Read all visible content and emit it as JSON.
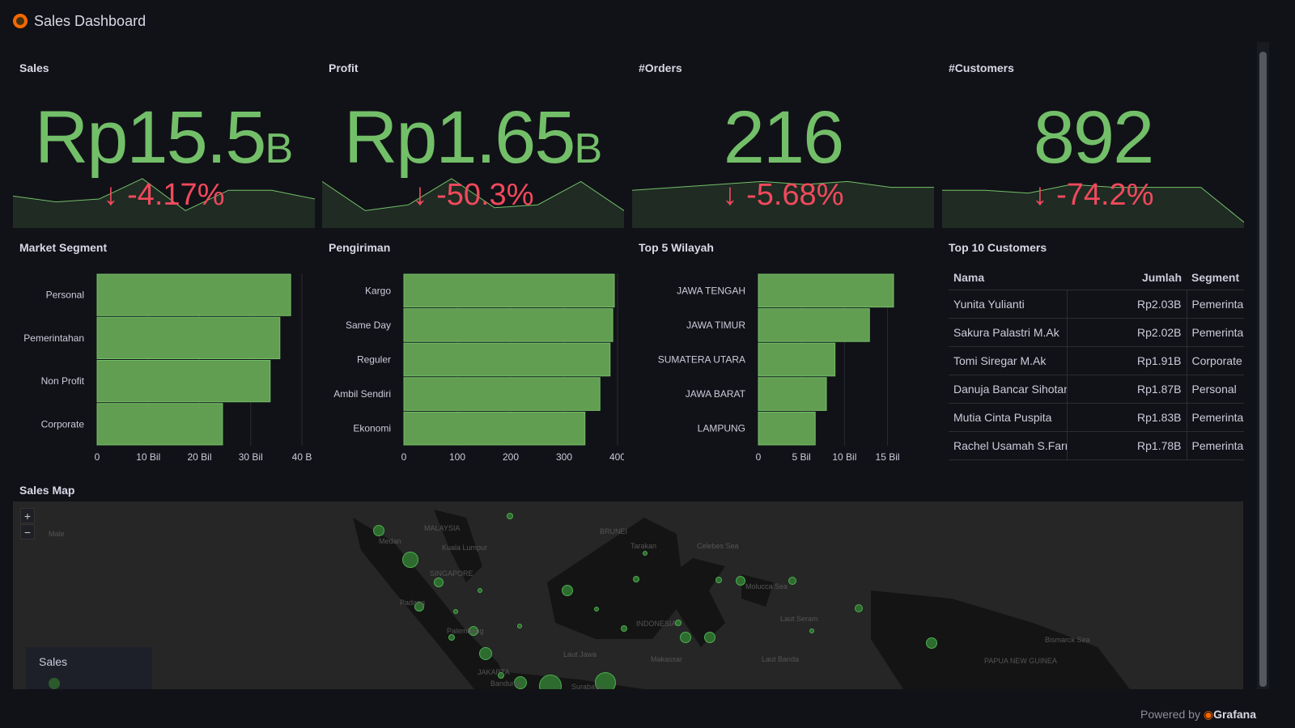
{
  "header": {
    "title": "Sales Dashboard"
  },
  "stats": [
    {
      "title": "Sales",
      "value": "Rp15.5",
      "unit": "B",
      "delta": "-4.17%",
      "spark": [
        0.55,
        0.45,
        0.5,
        0.85,
        0.3,
        0.65,
        0.65,
        0.5
      ]
    },
    {
      "title": "Profit",
      "value": "Rp1.65",
      "unit": "B",
      "delta": "-50.3%",
      "spark": [
        0.8,
        0.3,
        0.4,
        0.85,
        0.35,
        0.4,
        0.8,
        0.3
      ]
    },
    {
      "title": "#Orders",
      "value": "216",
      "unit": "",
      "delta": "-5.68%",
      "spark": [
        0.65,
        0.7,
        0.75,
        0.8,
        0.75,
        0.8,
        0.7,
        0.7
      ]
    },
    {
      "title": "#Customers",
      "value": "892",
      "unit": "",
      "delta": "-74.2%",
      "spark": [
        0.65,
        0.65,
        0.6,
        0.75,
        0.7,
        0.7,
        0.7,
        0.1
      ]
    }
  ],
  "colors": {
    "green": "#73bf69",
    "bar": "#629e51",
    "red": "#f2495c"
  },
  "chart_data": [
    {
      "type": "bar",
      "title": "Market Segment",
      "categories": [
        "Personal",
        "Pemerintahan",
        "Non Profit",
        "Corporate"
      ],
      "values": [
        37.8,
        35.7,
        33.8,
        24.5
      ],
      "xticks": [
        "0",
        "10 Bil",
        "20 Bil",
        "30 Bil",
        "40 B"
      ],
      "xlim": [
        0,
        40
      ]
    },
    {
      "type": "bar",
      "title": "Pengiriman",
      "categories": [
        "Kargo",
        "Same Day",
        "Reguler",
        "Ambil Sendiri",
        "Ekonomi"
      ],
      "values": [
        394,
        391,
        386,
        367,
        339
      ],
      "xticks": [
        "0",
        "100",
        "200",
        "300",
        "400"
      ],
      "xlim": [
        0,
        400
      ]
    },
    {
      "type": "bar",
      "title": "Top 5 Wilayah",
      "categories": [
        "JAWA TENGAH",
        "JAWA TIMUR",
        "SUMATERA UTARA",
        "JAWA BARAT",
        "LAMPUNG"
      ],
      "values": [
        15.7,
        12.9,
        8.9,
        7.9,
        6.6
      ],
      "xticks": [
        "0",
        "5 Bil",
        "10 Bil",
        "15 Bil"
      ],
      "xlim": [
        0,
        15.7
      ]
    }
  ],
  "table": {
    "title": "Top 10 Customers",
    "columns": [
      "Nama",
      "Jumlah",
      "Segment"
    ],
    "rows": [
      [
        "Yunita Yulianti",
        "Rp2.03B",
        "Pemerintahan"
      ],
      [
        "Sakura Palastri M.Ak",
        "Rp2.02B",
        "Pemerintahan"
      ],
      [
        "Tomi Siregar M.Ak",
        "Rp1.91B",
        "Corporate"
      ],
      [
        "Danuja Bancar Sihotang",
        "Rp1.87B",
        "Personal"
      ],
      [
        "Mutia Cinta Puspita",
        "Rp1.83B",
        "Pemerintahan"
      ],
      [
        "Rachel Usamah S.Farm",
        "Rp1.78B",
        "Pemerintahan"
      ]
    ]
  },
  "map": {
    "title": "Sales Map",
    "zoom_in": "+",
    "zoom_out": "−",
    "legend": "Sales",
    "labels": [
      "MALAYSIA",
      "Medan",
      "Kuala Lumpur",
      "SINGAPORE",
      "Padang",
      "Palembang",
      "JAKARTA",
      "Bandung",
      "Surabaya",
      "Laut Jawa",
      "BRUNEI",
      "Tarakan",
      "Celebes Sea",
      "Molucca Sea",
      "INDONESIA",
      "Makassar",
      "Laut Banda",
      "Laut Seram",
      "PAPUA NEW GUINEA",
      "Bismarck Sea",
      "Male"
    ]
  },
  "footer": {
    "prefix": "Powered by",
    "brand": "Grafana"
  }
}
